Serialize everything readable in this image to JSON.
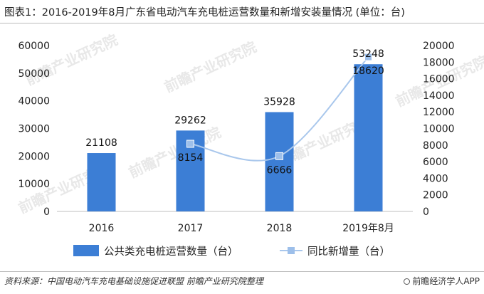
{
  "title": "图表1：2016-2019年8月广东省电动汽车充电桩运营数量和新增安装量情况 (单位：台)",
  "watermark": "前瞻产业研究院",
  "source": "资料来源：中国电动汽车充电基础设施促进联盟 前瞻产业研究院整理",
  "brand": "前瞻经济学人APP",
  "colors": {
    "bar": "#3c7ed5",
    "line": "#a9c7ec",
    "marker": "#9dbfea",
    "axis": "#bfbfbf"
  },
  "chart_data": {
    "type": "bar+line",
    "categories": [
      "2016",
      "2017",
      "2018",
      "2019年8月"
    ],
    "series": [
      {
        "name": "公共类充电桩运营数量（台）",
        "type": "bar",
        "axis": "left",
        "values": [
          21108,
          29262,
          35928,
          53248
        ],
        "labels": [
          "21108",
          "29262",
          "35928",
          "53248"
        ]
      },
      {
        "name": "同比新增量（台）",
        "type": "line",
        "axis": "right",
        "values": [
          null,
          8154,
          6666,
          18620
        ],
        "labels": [
          "",
          "8154",
          "6666",
          "18620"
        ]
      }
    ],
    "ylim_left": [
      0,
      60000
    ],
    "yticks_left": [
      "0",
      "10000",
      "20000",
      "30000",
      "40000",
      "50000",
      "60000"
    ],
    "ylim_right": [
      0,
      20000
    ],
    "yticks_right": [
      "0",
      "2000",
      "4000",
      "6000",
      "8000",
      "10000",
      "12000",
      "14000",
      "16000",
      "18000",
      "20000"
    ],
    "grid": false,
    "legend": "bottom"
  }
}
